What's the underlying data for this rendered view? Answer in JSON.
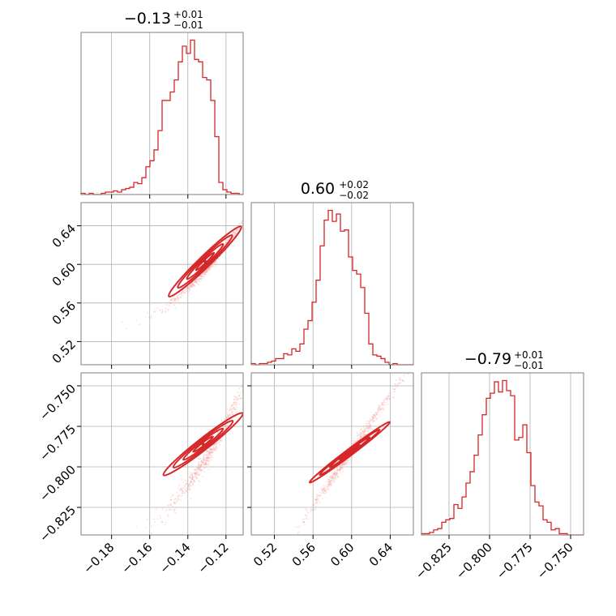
{
  "chart_data": {
    "type": "corner",
    "color": "#d62728",
    "point_color": "#f3a0a0",
    "parameters": [
      {
        "title": {
          "median": "−0.13",
          "plus": "+0.01",
          "minus": "−0.01"
        },
        "range": [
          -0.196,
          -0.111
        ],
        "ticks": [
          -0.18,
          -0.16,
          -0.14,
          -0.12
        ],
        "tick_labels": [
          "−0.18",
          "−0.16",
          "−0.14",
          "−0.12"
        ],
        "hist": [
          1,
          0,
          1,
          0,
          0,
          1,
          2,
          2,
          3,
          2,
          4,
          5,
          6,
          10,
          9,
          14,
          23,
          28,
          37,
          53,
          78,
          78,
          85,
          95,
          110,
          123,
          117,
          128,
          112,
          110,
          97,
          95,
          78,
          48,
          10,
          4,
          2,
          1,
          1,
          0
        ],
        "hist_max": 128
      },
      {
        "title": {
          "median": "0.60",
          "plus": "+0.02",
          "minus": "−0.02"
        },
        "range": [
          0.496,
          0.664
        ],
        "ticks": [
          0.52,
          0.56,
          0.6,
          0.64
        ],
        "tick_labels": [
          "0.52",
          "0.56",
          "0.60",
          "0.64"
        ],
        "hist": [
          1,
          0,
          1,
          1,
          2,
          3,
          5,
          5,
          9,
          8,
          13,
          11,
          17,
          29,
          36,
          51,
          69,
          97,
          118,
          126,
          117,
          123,
          109,
          110,
          88,
          77,
          74,
          63,
          42,
          17,
          8,
          7,
          5,
          2,
          0,
          1,
          0,
          0,
          0,
          0
        ],
        "hist_max": 126
      },
      {
        "title": {
          "median": "−0.79",
          "plus": "+0.01",
          "minus": "−0.01"
        },
        "range": [
          -0.842,
          -0.742
        ],
        "ticks": [
          -0.825,
          -0.8,
          -0.775,
          -0.75
        ],
        "tick_labels": [
          "−0.825",
          "−0.800",
          "−0.775",
          "−0.750"
        ],
        "hist": [
          1,
          1,
          2,
          4,
          5,
          10,
          12,
          13,
          24,
          21,
          30,
          41,
          50,
          63,
          79,
          95,
          108,
          112,
          121,
          113,
          122,
          114,
          110,
          75,
          77,
          87,
          65,
          39,
          26,
          23,
          12,
          10,
          4,
          5,
          1,
          1,
          0,
          0,
          0,
          0
        ],
        "hist_max": 122
      }
    ],
    "contour_levels": [
      0.5,
      1.0,
      1.5,
      2.0
    ]
  }
}
